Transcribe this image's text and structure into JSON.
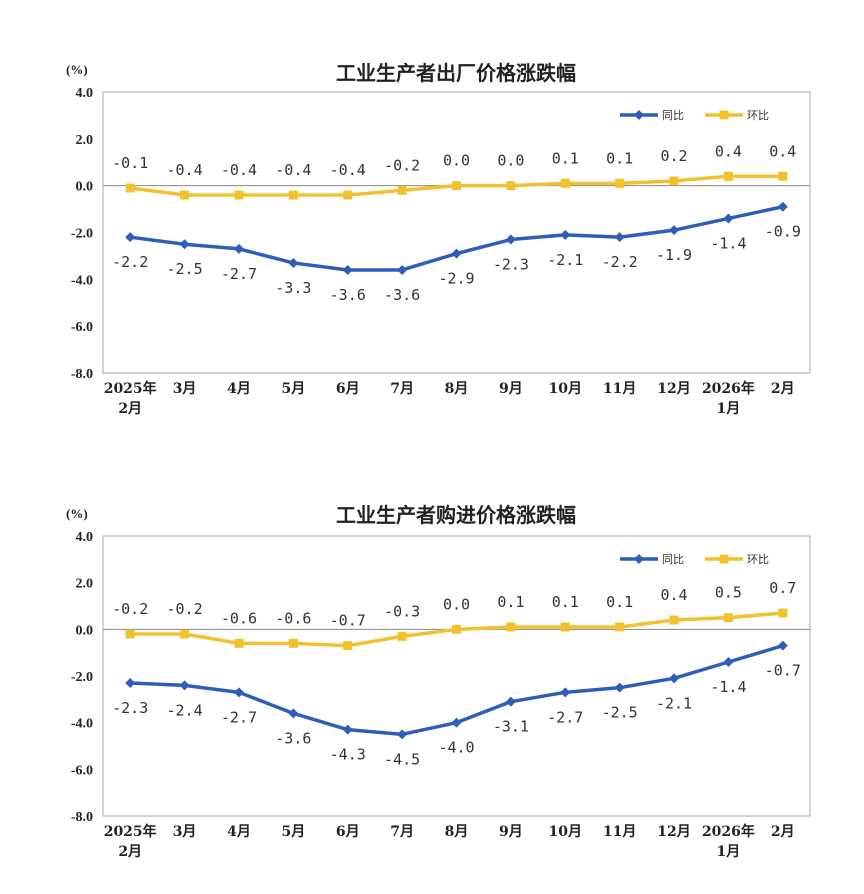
{
  "chart_data": [
    {
      "type": "line",
      "title": "工业生产者出厂价格涨跌幅",
      "unit": "(%)",
      "categories": [
        "2025年\n2月",
        "3月",
        "4月",
        "5月",
        "6月",
        "7月",
        "8月",
        "9月",
        "10月",
        "11月",
        "12月",
        "2026年\n1月",
        "2月"
      ],
      "yticks": [
        "4.0",
        "2.0",
        "0.0",
        "-2.0",
        "-4.0",
        "-6.0",
        "-8.0"
      ],
      "ylim": [
        -8,
        4
      ],
      "grid": false,
      "legend_position": "top-right",
      "series": [
        {
          "name": "同比",
          "color": "#2E5FB8",
          "marker": "diamond",
          "values": [
            -2.2,
            -2.5,
            -2.7,
            -3.3,
            -3.6,
            -3.6,
            -2.9,
            -2.3,
            -2.1,
            -2.2,
            -1.9,
            -1.4,
            -0.9
          ],
          "labels": [
            "-2.2",
            "-2.5",
            "-2.7",
            "-3.3",
            "-3.6",
            "-3.6",
            "-2.9",
            "-2.3",
            "-2.1",
            "-2.2",
            "-1.9",
            "-1.4",
            "-0.9"
          ]
        },
        {
          "name": "环比",
          "color": "#F2C12E",
          "marker": "square",
          "values": [
            -0.1,
            -0.4,
            -0.4,
            -0.4,
            -0.4,
            -0.2,
            0.0,
            0.0,
            0.1,
            0.1,
            0.2,
            0.4,
            0.4
          ],
          "labels": [
            "-0.1",
            "-0.4",
            "-0.4",
            "-0.4",
            "-0.4",
            "-0.2",
            "0.0",
            "0.0",
            "0.1",
            "0.1",
            "0.2",
            "0.4",
            "0.4"
          ]
        }
      ]
    },
    {
      "type": "line",
      "title": "工业生产者购进价格涨跌幅",
      "unit": "(%)",
      "categories": [
        "2025年\n2月",
        "3月",
        "4月",
        "5月",
        "6月",
        "7月",
        "8月",
        "9月",
        "10月",
        "11月",
        "12月",
        "2026年\n1月",
        "2月"
      ],
      "yticks": [
        "4.0",
        "2.0",
        "0.0",
        "-2.0",
        "-4.0",
        "-6.0",
        "-8.0"
      ],
      "ylim": [
        -8,
        4
      ],
      "grid": false,
      "legend_position": "top-right",
      "series": [
        {
          "name": "同比",
          "color": "#2E5FB8",
          "marker": "diamond",
          "values": [
            -2.3,
            -2.4,
            -2.7,
            -3.6,
            -4.3,
            -4.5,
            -4.0,
            -3.1,
            -2.7,
            -2.5,
            -2.1,
            -1.4,
            -0.7
          ],
          "labels": [
            "-2.3",
            "-2.4",
            "-2.7",
            "-3.6",
            "-4.3",
            "-4.5",
            "-4.0",
            "-3.1",
            "-2.7",
            "-2.5",
            "-2.1",
            "-1.4",
            "-0.7"
          ]
        },
        {
          "name": "环比",
          "color": "#F2C12E",
          "marker": "square",
          "values": [
            -0.2,
            -0.2,
            -0.6,
            -0.6,
            -0.7,
            -0.3,
            0.0,
            0.1,
            0.1,
            0.1,
            0.4,
            0.5,
            0.7
          ],
          "labels": [
            "-0.2",
            "-0.2",
            "-0.6",
            "-0.6",
            "-0.7",
            "-0.3",
            "0.0",
            "0.1",
            "0.1",
            "0.1",
            "0.4",
            "0.5",
            "0.7"
          ]
        }
      ]
    }
  ]
}
